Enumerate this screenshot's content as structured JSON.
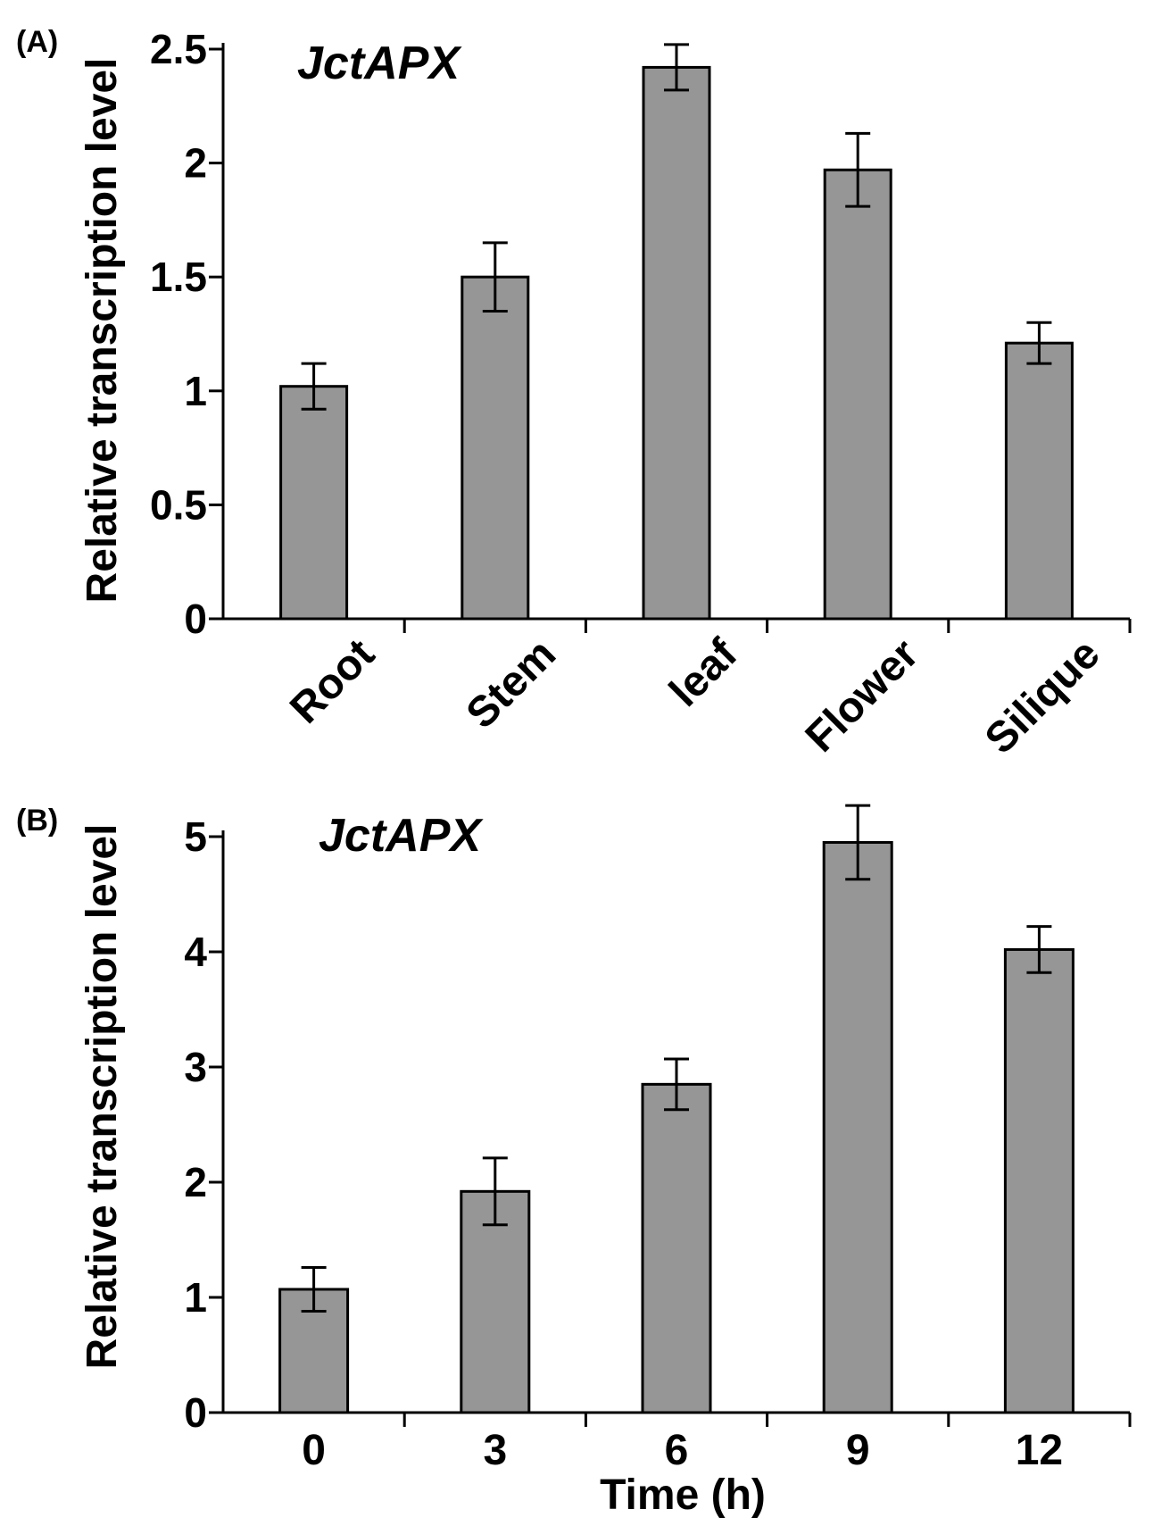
{
  "chart_data": [
    {
      "type": "bar",
      "panel_label": "(A)",
      "title": "JctAPX",
      "xlabel": "",
      "ylabel": "Relative transcription level",
      "categories": [
        "Root",
        "Stem",
        "leaf",
        "Flower",
        "Silique"
      ],
      "values": [
        1.02,
        1.5,
        2.42,
        1.97,
        1.21
      ],
      "errors": [
        0.1,
        0.15,
        0.1,
        0.16,
        0.09
      ],
      "ylim": [
        0,
        2.5
      ],
      "yticks": [
        0,
        0.5,
        1,
        1.5,
        2,
        2.5
      ],
      "ytick_labels": [
        "0",
        "0.5",
        "1",
        "1.5",
        "2",
        "2.5"
      ],
      "bar_color": "#969696",
      "grid": false,
      "legend": false
    },
    {
      "type": "bar",
      "panel_label": "(B)",
      "title": "JctAPX",
      "xlabel": "Time (h)",
      "ylabel": "Relative transcription level",
      "categories": [
        "0",
        "3",
        "6",
        "9",
        "12"
      ],
      "values": [
        1.07,
        1.92,
        2.85,
        4.95,
        4.02
      ],
      "errors": [
        0.19,
        0.29,
        0.22,
        0.32,
        0.2
      ],
      "ylim": [
        0,
        5
      ],
      "yticks": [
        0,
        1,
        2,
        3,
        4,
        5
      ],
      "ytick_labels": [
        "0",
        "1",
        "2",
        "3",
        "4",
        "5"
      ],
      "bar_color": "#969696",
      "grid": false,
      "legend": false
    }
  ]
}
